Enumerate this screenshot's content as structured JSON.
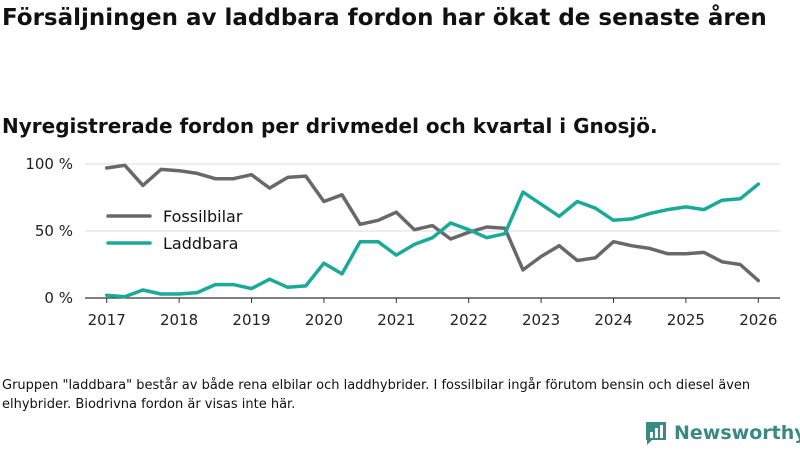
{
  "title": "Försäljningen av laddbara fordon har ökat de senaste åren",
  "subtitle": "Nyregistrerade fordon per drivmedel och kvartal i Gnosjö.",
  "footnote": "Gruppen \"laddbara\" består av både rena elbilar och laddhybrider. I fossilbilar ingår förutom bensin och diesel även elhybrider. Biodrivna fordon är visas inte här.",
  "logo": {
    "text": "Newsworthy",
    "color": "#3a8a83"
  },
  "chart_data": {
    "type": "line",
    "title": "Försäljningen av laddbara fordon har ökat de senaste åren",
    "subtitle": "Nyregistrerade fordon per drivmedel och kvartal i Gnosjö.",
    "xlabel": "",
    "ylabel": "",
    "x": [
      2017.0,
      2017.25,
      2017.5,
      2017.75,
      2018.0,
      2018.25,
      2018.5,
      2018.75,
      2019.0,
      2019.25,
      2019.5,
      2019.75,
      2020.0,
      2020.25,
      2020.5,
      2020.75,
      2021.0,
      2021.25,
      2021.5,
      2021.75,
      2022.0,
      2022.25,
      2022.5,
      2022.75,
      2023.0,
      2023.25,
      2023.5,
      2023.75,
      2024.0,
      2024.25,
      2024.5,
      2024.75,
      2025.0,
      2025.25,
      2025.5,
      2025.75,
      2026.0
    ],
    "xlim": [
      2016.7,
      2026.3
    ],
    "ylim": [
      0,
      100
    ],
    "x_ticks": [
      {
        "value": 2017,
        "label": "2017"
      },
      {
        "value": 2018,
        "label": "2018"
      },
      {
        "value": 2019,
        "label": "2019"
      },
      {
        "value": 2020,
        "label": "2020"
      },
      {
        "value": 2021,
        "label": "2021"
      },
      {
        "value": 2022,
        "label": "2022"
      },
      {
        "value": 2023,
        "label": "2023"
      },
      {
        "value": 2024,
        "label": "2024"
      },
      {
        "value": 2025,
        "label": "2025"
      },
      {
        "value": 2026,
        "label": "2026"
      }
    ],
    "y_ticks": [
      {
        "value": 0,
        "label": "0 %"
      },
      {
        "value": 50,
        "label": "50 %"
      },
      {
        "value": 100,
        "label": "100 %"
      }
    ],
    "grid": true,
    "legend_position": "left-middle",
    "series": [
      {
        "name": "Fossilbilar",
        "color": "#68686b",
        "values": [
          97,
          99,
          84,
          96,
          95,
          93,
          89,
          89,
          92,
          82,
          90,
          91,
          72,
          77,
          55,
          58,
          64,
          51,
          54,
          44,
          49,
          53,
          52,
          21,
          31,
          39,
          28,
          30,
          42,
          39,
          37,
          33,
          33,
          34,
          27,
          25,
          13
        ]
      },
      {
        "name": "Laddbara",
        "color": "#1aaa98",
        "values": [
          2,
          1,
          6,
          3,
          3,
          4,
          10,
          10,
          7,
          14,
          8,
          9,
          26,
          18,
          42,
          42,
          32,
          40,
          45,
          56,
          51,
          45,
          48,
          79,
          70,
          61,
          72,
          67,
          58,
          59,
          63,
          66,
          68,
          66,
          73,
          74,
          85
        ]
      }
    ]
  }
}
